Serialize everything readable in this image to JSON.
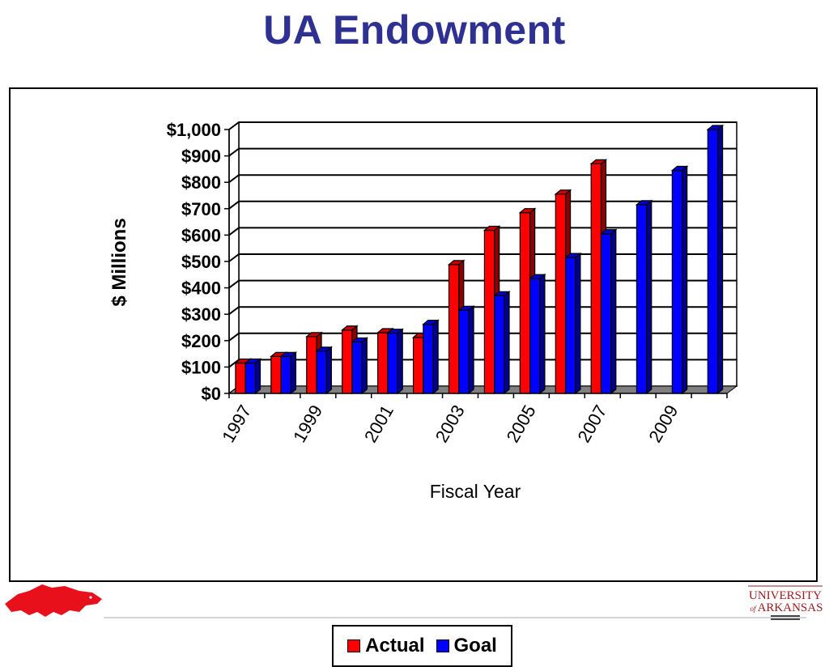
{
  "header": {
    "title": "UA Endowment"
  },
  "chart_data": {
    "type": "bar",
    "style": "3d-clustered",
    "title": "",
    "xlabel": "Fiscal Year",
    "ylabel": "$ Millions",
    "ylim": [
      0,
      1000
    ],
    "ytick_labels": [
      "$0",
      "$100",
      "$200",
      "$300",
      "$400",
      "$500",
      "$600",
      "$700",
      "$800",
      "$900",
      "$1,000"
    ],
    "categories": [
      "1997",
      "1998",
      "1999",
      "2000",
      "2001",
      "2002",
      "2003",
      "2004",
      "2005",
      "2006",
      "2007",
      "2008",
      "2009",
      "2010"
    ],
    "xtick_labels": [
      "1997",
      "1999",
      "2001",
      "2003",
      "2005",
      "2007",
      "2009"
    ],
    "grid": true,
    "legend_position": "bottom",
    "series": [
      {
        "name": "Actual",
        "color": "#ff0000",
        "values": [
          115,
          140,
          215,
          240,
          230,
          212,
          488,
          618,
          685,
          755,
          870,
          null,
          null,
          null
        ]
      },
      {
        "name": "Goal",
        "color": "#0000ff",
        "values": [
          115,
          140,
          160,
          195,
          228,
          262,
          315,
          370,
          435,
          515,
          605,
          715,
          845,
          1000
        ]
      }
    ],
    "floor_color": "#808080"
  },
  "legend": {
    "items": [
      {
        "label": "Actual",
        "color": "#ff0000"
      },
      {
        "label": "Goal",
        "color": "#0000ff"
      }
    ]
  },
  "logos": {
    "left": "razorback-logo",
    "right": "university-of-arkansas-logo",
    "right_text_top": "UNIVERSITY",
    "right_text_of": "of",
    "right_text_bottom": "ARKANSAS"
  }
}
